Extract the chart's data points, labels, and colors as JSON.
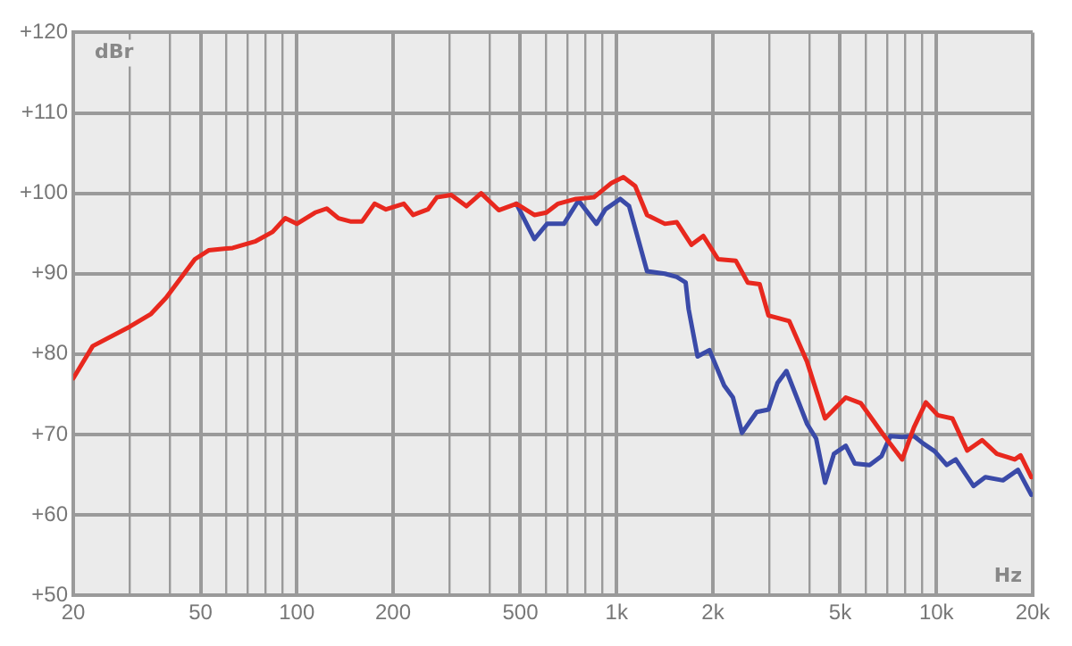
{
  "chart_data": {
    "type": "line",
    "xlabel": "Hz",
    "ylabel": "dBr",
    "log": "x",
    "grid": true,
    "legend": false,
    "marker": "none",
    "line_style": "solid",
    "xlim": [
      20,
      20000
    ],
    "ylim": [
      50,
      120
    ],
    "xticks": [
      {
        "value": 20,
        "label": "20"
      },
      {
        "value": 30,
        "label": null
      },
      {
        "value": 40,
        "label": null
      },
      {
        "value": 50,
        "label": "50"
      },
      {
        "value": 60,
        "label": null
      },
      {
        "value": 70,
        "label": null
      },
      {
        "value": 80,
        "label": null
      },
      {
        "value": 90,
        "label": null
      },
      {
        "value": 100,
        "label": "100"
      },
      {
        "value": 200,
        "label": "200"
      },
      {
        "value": 300,
        "label": null
      },
      {
        "value": 400,
        "label": null
      },
      {
        "value": 500,
        "label": "500"
      },
      {
        "value": 600,
        "label": null
      },
      {
        "value": 700,
        "label": null
      },
      {
        "value": 800,
        "label": null
      },
      {
        "value": 900,
        "label": null
      },
      {
        "value": 1000,
        "label": "1k"
      },
      {
        "value": 2000,
        "label": "2k"
      },
      {
        "value": 3000,
        "label": null
      },
      {
        "value": 4000,
        "label": null
      },
      {
        "value": 5000,
        "label": "5k"
      },
      {
        "value": 6000,
        "label": null
      },
      {
        "value": 7000,
        "label": null
      },
      {
        "value": 8000,
        "label": null
      },
      {
        "value": 9000,
        "label": null
      },
      {
        "value": 10000,
        "label": "10k"
      },
      {
        "value": 20000,
        "label": "20k"
      }
    ],
    "yticks": [
      {
        "value": 50,
        "label": "+50"
      },
      {
        "value": 60,
        "label": "+60"
      },
      {
        "value": 70,
        "label": "+70"
      },
      {
        "value": 80,
        "label": "+80"
      },
      {
        "value": 90,
        "label": "+90"
      },
      {
        "value": 100,
        "label": "+100"
      },
      {
        "value": 110,
        "label": "+110"
      },
      {
        "value": 120,
        "label": "+120"
      }
    ],
    "series": [
      {
        "color": "#e8281e",
        "x": [
          20,
          23,
          30,
          35,
          39,
          48,
          53,
          63,
          74,
          84,
          92,
          100,
          114,
          124,
          135,
          147,
          160,
          175,
          190,
          216,
          231,
          257,
          274,
          304,
          339,
          377,
          428,
          486,
          553,
          603,
          656,
          746,
          849,
          965,
          1050,
          1143,
          1245,
          1416,
          1542,
          1714,
          1866,
          2076,
          2360,
          2570,
          2800,
          2985,
          3467,
          3943,
          4485,
          5206,
          5797,
          6874,
          7814,
          8509,
          9268,
          10100,
          11220,
          12480,
          13900,
          15450,
          17580,
          18330,
          19800
        ],
        "values": [
          77,
          81,
          83.4,
          85,
          87,
          91.8,
          92.9,
          93.2,
          94,
          95.2,
          96.9,
          96.2,
          97.6,
          98.1,
          96.9,
          96.5,
          96.5,
          98.7,
          98,
          98.7,
          97.3,
          98,
          99.5,
          99.8,
          98.4,
          100,
          97.9,
          98.7,
          97.3,
          97.6,
          98.7,
          99.3,
          99.5,
          101.3,
          102,
          100.9,
          97.3,
          96.2,
          96.4,
          93.6,
          94.7,
          91.8,
          91.6,
          88.9,
          88.7,
          84.8,
          84.1,
          79,
          72,
          74.6,
          73.9,
          69.8,
          66.9,
          70.9,
          74,
          72.4,
          72,
          68,
          69.3,
          67.6,
          66.9,
          67.4,
          64.7
        ]
      },
      {
        "color": "#3a4aa8",
        "x": [
          486,
          553,
          606,
          684,
          760,
          865,
          922,
          1026,
          1094,
          1245,
          1416,
          1542,
          1644,
          1679,
          1791,
          1951,
          2169,
          2311,
          2466,
          2742,
          2985,
          3184,
          3396,
          3943,
          4206,
          4485,
          4783,
          5206,
          5553,
          6178,
          6733,
          7177,
          7814,
          8509,
          9078,
          9885,
          10770,
          11490,
          13060,
          14220,
          16140,
          17990,
          19800
        ],
        "values": [
          98.7,
          94.3,
          96.2,
          96.2,
          99.1,
          96.2,
          98,
          99.3,
          98.4,
          90.3,
          90,
          89.6,
          88.9,
          85.6,
          79.7,
          80.5,
          76.1,
          74.6,
          70.2,
          72.8,
          73.1,
          76.4,
          77.9,
          71.3,
          69.5,
          64,
          67.6,
          68.6,
          66.4,
          66.2,
          67.3,
          69.8,
          69.7,
          69.8,
          68.9,
          67.9,
          66.2,
          66.9,
          63.6,
          64.7,
          64.3,
          65.6,
          62.5
        ]
      }
    ]
  }
}
